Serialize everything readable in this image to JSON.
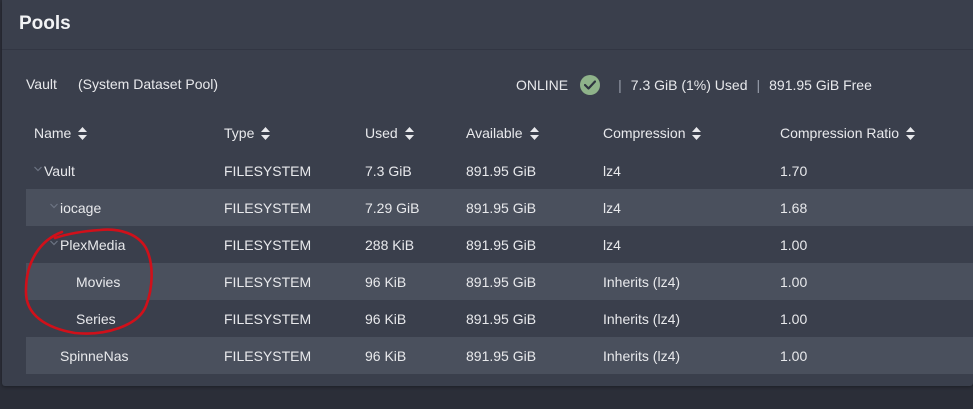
{
  "card": {
    "title": "Pools"
  },
  "pool": {
    "name": "Vault",
    "subtitle": "(System Dataset Pool)",
    "status": "ONLINE",
    "status_icon": "check-circle-icon",
    "used": "7.3 GiB (1%) Used",
    "free": "891.95 GiB Free",
    "separator": "|"
  },
  "table": {
    "columns": [
      "Name",
      "Type",
      "Used",
      "Available",
      "Compression",
      "Compression Ratio"
    ],
    "rows": [
      {
        "name": "Vault",
        "type": "FILESYSTEM",
        "used": "7.3 GiB",
        "available": "891.95 GiB",
        "compression": "lz4",
        "ratio": "1.70",
        "expandable": true
      },
      {
        "name": "iocage",
        "type": "FILESYSTEM",
        "used": "7.29 GiB",
        "available": "891.95 GiB",
        "compression": "lz4",
        "ratio": "1.68",
        "expandable": true
      },
      {
        "name": "PlexMedia",
        "type": "FILESYSTEM",
        "used": "288 KiB",
        "available": "891.95 GiB",
        "compression": "lz4",
        "ratio": "1.00",
        "expandable": true
      },
      {
        "name": "Movies",
        "type": "FILESYSTEM",
        "used": "96 KiB",
        "available": "891.95 GiB",
        "compression": "Inherits (lz4)",
        "ratio": "1.00",
        "expandable": false
      },
      {
        "name": "Series",
        "type": "FILESYSTEM",
        "used": "96 KiB",
        "available": "891.95 GiB",
        "compression": "Inherits (lz4)",
        "ratio": "1.00",
        "expandable": false
      },
      {
        "name": "SpinneNas",
        "type": "FILESYSTEM",
        "used": "96 KiB",
        "available": "891.95 GiB",
        "compression": "Inherits (lz4)",
        "ratio": "1.00",
        "expandable": false
      }
    ]
  },
  "colors": {
    "page_bg": "#2b2e38",
    "card_bg": "#3a3f4c",
    "alt_row_bg": "#4a505d",
    "status_ok": "#8fb38a",
    "annotation_red": "#d0101a"
  }
}
